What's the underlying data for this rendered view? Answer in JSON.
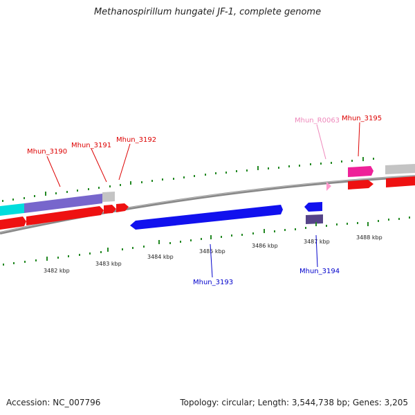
{
  "title": "Methanospirillum hungatei JF-1, complete genome",
  "footer": {
    "accession": "Accession: NC_007796",
    "summary": "Topology: circular; Length: 3,544,738 bp; Genes: 3,205"
  },
  "scale_labels": [
    "3482 kbp",
    "3483 kbp",
    "3484 kbp",
    "3485 kbp",
    "3486 kbp",
    "3487 kbp",
    "3488 kbp"
  ],
  "gene_labels": [
    {
      "id": "Mhun_3190",
      "color": "#dd0000"
    },
    {
      "id": "Mhun_3191",
      "color": "#dd0000"
    },
    {
      "id": "Mhun_3192",
      "color": "#dd0000"
    },
    {
      "id": "Mhun_R0063",
      "color": "#ee88bb"
    },
    {
      "id": "Mhun_3195",
      "color": "#dd0000"
    },
    {
      "id": "Mhun_3193",
      "color": "#0000cc"
    },
    {
      "id": "Mhun_3194",
      "color": "#0000cc"
    }
  ],
  "colors": {
    "backbone": "#808080",
    "forward_cds": "#ee1111",
    "reverse_cds": "#1111ee",
    "trna": "#ff99cc",
    "tick": "#228822",
    "cyan_feature": "#00e5e5",
    "purple_feature": "#7766cc",
    "grey_feature": "#c0c0c0",
    "magenta_feature": "#ee2299",
    "dark_purple_feature": "#554488"
  }
}
